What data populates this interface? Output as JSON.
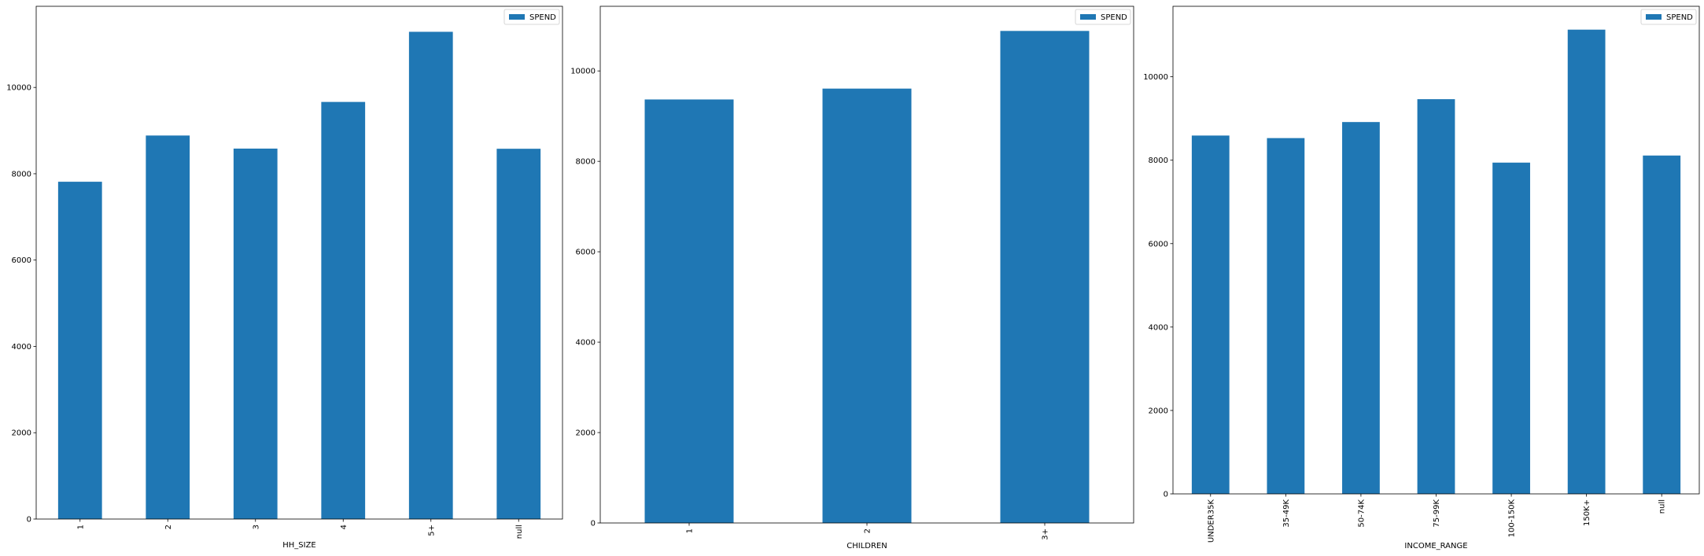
{
  "chart_data": [
    {
      "type": "bar",
      "xlabel": "HH_SIZE",
      "ylabel": "",
      "categories": [
        "1",
        "2",
        "3",
        "4",
        "5+",
        "null"
      ],
      "series": [
        {
          "name": "SPEND",
          "values": [
            7815,
            8886,
            8583,
            9664,
            11289,
            8579
          ]
        }
      ],
      "ylim": [
        0,
        11880
      ],
      "yticks": [
        0,
        2000,
        4000,
        6000,
        8000,
        10000
      ],
      "legend": "top-right",
      "grid": false,
      "color": "#1f77b4"
    },
    {
      "type": "bar",
      "xlabel": "CHILDREN",
      "ylabel": "",
      "categories": [
        "1",
        "2",
        "3+"
      ],
      "series": [
        {
          "name": "SPEND",
          "values": [
            9369,
            9609,
            10885
          ]
        }
      ],
      "ylim": [
        0,
        11430
      ],
      "yticks": [
        0,
        2000,
        4000,
        6000,
        8000,
        10000
      ],
      "legend": "top-right",
      "grid": false,
      "color": "#1f77b4"
    },
    {
      "type": "bar",
      "xlabel": "INCOME_RANGE",
      "ylabel": "",
      "categories": [
        "UNDER35K",
        "35-49K",
        "50-74K",
        "75-99K",
        "100-150K",
        "150K+",
        "null"
      ],
      "series": [
        {
          "name": "SPEND",
          "values": [
            8591,
            8530,
            8915,
            9463,
            7942,
            11130,
            8112
          ]
        }
      ],
      "ylim": [
        0,
        11690
      ],
      "yticks": [
        0,
        2000,
        4000,
        6000,
        8000,
        10000
      ],
      "legend": "top-right",
      "grid": false,
      "color": "#1f77b4"
    }
  ]
}
